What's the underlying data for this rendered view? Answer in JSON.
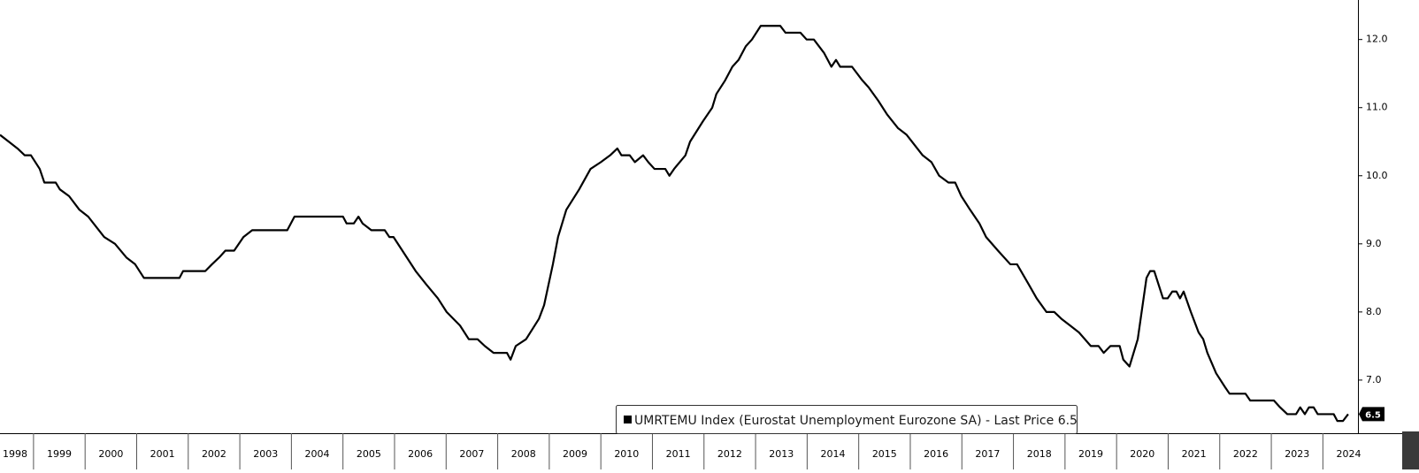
{
  "chart_data": {
    "type": "line",
    "series": [
      {
        "name": "UMRTEMU Index (Eurostat Unemployment Eurozone SA) - Last Price 6.5",
        "color": "#000000",
        "x": [
          1998.35,
          1998.52,
          1998.69,
          1998.83,
          1998.95,
          1999.12,
          1999.21,
          1999.43,
          1999.51,
          1999.69,
          1999.89,
          2000.06,
          2000.37,
          2000.58,
          2000.8,
          2000.97,
          2001.14,
          2001.83,
          2001.9,
          2002.33,
          2002.46,
          2002.6,
          2002.72,
          2002.89,
          2003.07,
          2003.24,
          2003.92,
          2004.06,
          2005.0,
          2005.07,
          2005.21,
          2005.3,
          2005.38,
          2005.55,
          2005.81,
          2005.9,
          2005.98,
          2006.41,
          2006.62,
          2006.84,
          2007.01,
          2007.27,
          2007.44,
          2007.61,
          2007.75,
          2007.92,
          2008.18,
          2008.25,
          2008.35,
          2008.55,
          2008.8,
          2008.9,
          2009.07,
          2009.17,
          2009.33,
          2009.58,
          2009.8,
          2010.0,
          2010.18,
          2010.32,
          2010.4,
          2010.56,
          2010.66,
          2010.82,
          2010.92,
          2011.04,
          2011.25,
          2011.33,
          2011.42,
          2011.64,
          2011.73,
          2011.98,
          2012.16,
          2012.24,
          2012.41,
          2012.55,
          2012.67,
          2012.81,
          2012.93,
          2013.1,
          2013.48,
          2013.58,
          2013.87,
          2013.99,
          2014.13,
          2014.33,
          2014.47,
          2014.56,
          2014.64,
          2014.87,
          2015.07,
          2015.19,
          2015.38,
          2015.55,
          2015.76,
          2015.93,
          2016.24,
          2016.41,
          2016.56,
          2016.74,
          2016.87,
          2016.99,
          2017.16,
          2017.34,
          2017.47,
          2017.7,
          2017.94,
          2018.07,
          2018.3,
          2018.45,
          2018.64,
          2018.79,
          2018.93,
          2019.1,
          2019.27,
          2019.5,
          2019.65,
          2019.75,
          2019.88,
          2020.06,
          2020.13,
          2020.25,
          2020.41,
          2020.58,
          2020.65,
          2020.73,
          2020.9,
          2020.99,
          2021.08,
          2021.16,
          2021.23,
          2021.3,
          2021.44,
          2021.59,
          2021.68,
          2021.76,
          2021.93,
          2022.1,
          2022.19,
          2022.5,
          2022.59,
          2023.05,
          2023.17,
          2023.31,
          2023.48,
          2023.56,
          2023.65,
          2023.73,
          2023.82,
          2023.9,
          2024.21,
          2024.28,
          2024.39,
          2024.49
        ],
        "values": [
          10.6,
          10.5,
          10.4,
          10.3,
          10.3,
          10.1,
          9.9,
          9.9,
          9.8,
          9.7,
          9.5,
          9.4,
          9.1,
          9.0,
          8.8,
          8.7,
          8.5,
          8.5,
          8.6,
          8.6,
          8.7,
          8.8,
          8.9,
          8.9,
          9.1,
          9.2,
          9.2,
          9.4,
          9.4,
          9.3,
          9.3,
          9.4,
          9.3,
          9.2,
          9.2,
          9.1,
          9.1,
          8.6,
          8.4,
          8.2,
          8.0,
          7.8,
          7.6,
          7.6,
          7.5,
          7.4,
          7.4,
          7.3,
          7.5,
          7.6,
          7.9,
          8.1,
          8.7,
          9.1,
          9.5,
          9.8,
          10.1,
          10.2,
          10.3,
          10.4,
          10.3,
          10.3,
          10.2,
          10.3,
          10.2,
          10.1,
          10.1,
          10.0,
          10.1,
          10.3,
          10.5,
          10.8,
          11.0,
          11.2,
          11.4,
          11.6,
          11.7,
          11.9,
          12.0,
          12.2,
          12.2,
          12.1,
          12.1,
          12.0,
          12.0,
          11.8,
          11.6,
          11.7,
          11.6,
          11.6,
          11.4,
          11.3,
          11.1,
          10.9,
          10.7,
          10.6,
          10.3,
          10.2,
          10.0,
          9.9,
          9.9,
          9.7,
          9.5,
          9.3,
          9.1,
          8.9,
          8.7,
          8.7,
          8.4,
          8.2,
          8.0,
          8.0,
          7.9,
          7.8,
          7.7,
          7.5,
          7.5,
          7.4,
          7.5,
          7.5,
          7.3,
          7.2,
          7.6,
          8.5,
          8.6,
          8.6,
          8.2,
          8.2,
          8.3,
          8.3,
          8.2,
          8.3,
          8.0,
          7.7,
          7.6,
          7.4,
          7.1,
          6.9,
          6.8,
          6.8,
          6.7,
          6.7,
          6.6,
          6.5,
          6.5,
          6.6,
          6.5,
          6.6,
          6.6,
          6.5,
          6.5,
          6.4,
          6.4,
          6.5
        ]
      }
    ],
    "last_price": 6.5,
    "xlim": [
      1998.35,
      2024.68
    ],
    "xticks": [
      1998,
      1999,
      2000,
      2001,
      2002,
      2003,
      2004,
      2005,
      2006,
      2007,
      2008,
      2009,
      2010,
      2011,
      2012,
      2013,
      2014,
      2015,
      2016,
      2017,
      2018,
      2019,
      2020,
      2021,
      2022,
      2023,
      2024
    ],
    "ylim": [
      6.22,
      12.58
    ],
    "yticks": [
      {
        "value": 7,
        "label": "7.0"
      },
      {
        "value": 8,
        "label": "8.0"
      },
      {
        "value": 9,
        "label": "9.0"
      },
      {
        "value": 10,
        "label": "10.0"
      },
      {
        "value": 11,
        "label": "11.0"
      },
      {
        "value": 12,
        "label": "12.0"
      }
    ],
    "grid": false
  }
}
